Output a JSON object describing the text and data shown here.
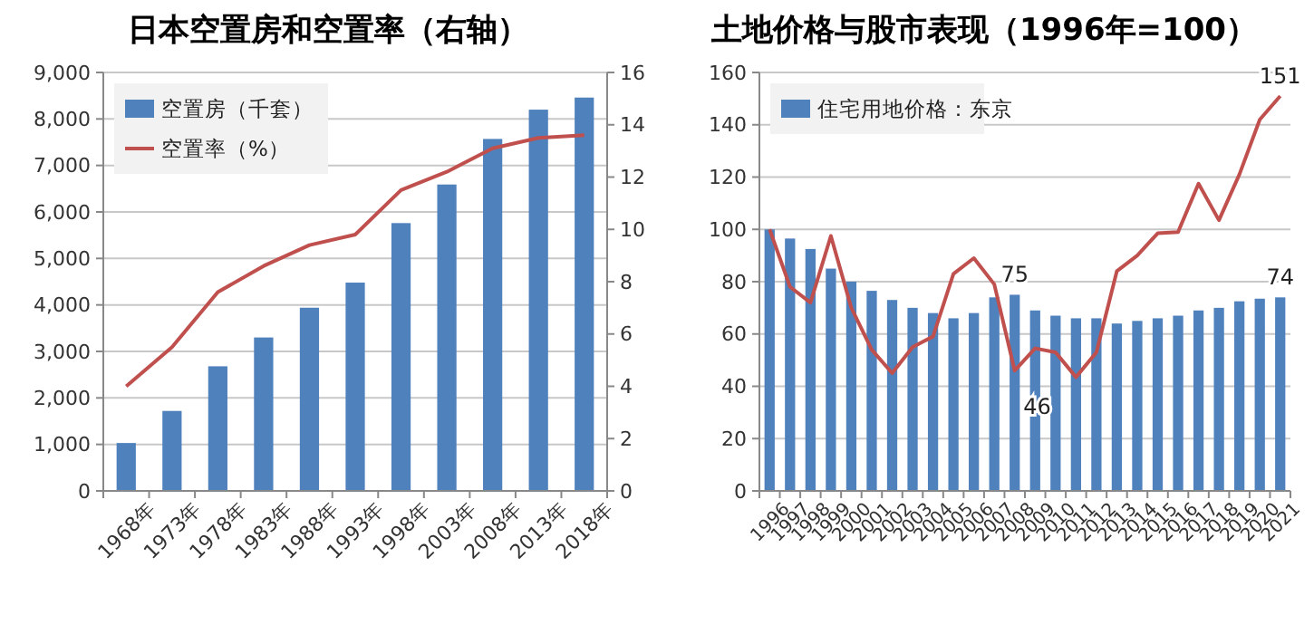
{
  "chart_data": [
    {
      "type": "bar",
      "title": "日本空置房和空置率（右轴）",
      "categories": [
        "1968年",
        "1973年",
        "1978年",
        "1983年",
        "1988年",
        "1993年",
        "1998年",
        "2003年",
        "2008年",
        "2013年",
        "2018年"
      ],
      "series": [
        {
          "name": "空置房（千套）",
          "type": "bar",
          "color": "#4f81bd",
          "values": [
            1030,
            1720,
            2680,
            3300,
            3940,
            4480,
            5760,
            6590,
            7570,
            8200,
            8460
          ]
        },
        {
          "name": "空置率（%）",
          "type": "line",
          "axis": "y2",
          "color": "#c0504d",
          "values": [
            4.0,
            5.5,
            7.6,
            8.6,
            9.4,
            9.8,
            11.5,
            12.2,
            13.1,
            13.5,
            13.6
          ]
        }
      ],
      "ylim": [
        0,
        9000
      ],
      "yticks": [
        {
          "value": 0,
          "label": "0"
        },
        {
          "value": 1000,
          "label": "1,000"
        },
        {
          "value": 2000,
          "label": "2,000"
        },
        {
          "value": 3000,
          "label": "3,000"
        },
        {
          "value": 4000,
          "label": "4,000"
        },
        {
          "value": 5000,
          "label": "5,000"
        },
        {
          "value": 6000,
          "label": "6,000"
        },
        {
          "value": 7000,
          "label": "7,000"
        },
        {
          "value": 8000,
          "label": "8,000"
        },
        {
          "value": 9000,
          "label": "9,000"
        }
      ],
      "y2lim": [
        0,
        16
      ],
      "y2ticks": [
        0,
        2,
        4,
        6,
        8,
        10,
        12,
        14,
        16
      ],
      "grid": "y",
      "legend": "top left",
      "marker": "none"
    },
    {
      "type": "bar",
      "title": "土地价格与股市表现（1996年=100）",
      "categories": [
        "1996",
        "1997",
        "1998",
        "1999",
        "2000",
        "2001",
        "2002",
        "2003",
        "2004",
        "2005",
        "2006",
        "2007",
        "2008",
        "2009",
        "2010",
        "2011",
        "2012",
        "2013",
        "2014",
        "2015",
        "2016",
        "2017",
        "2018",
        "2019",
        "2020",
        "2021"
      ],
      "series": [
        {
          "name": "住宅用地价格：东京",
          "type": "bar",
          "color": "#4f81bd",
          "values": [
            100,
            96.5,
            92.5,
            85,
            80,
            76.5,
            73,
            70,
            68,
            66,
            68,
            74,
            75,
            69,
            67,
            66,
            66,
            64,
            65,
            66,
            67,
            69,
            70,
            72.5,
            73.5,
            74
          ]
        },
        {
          "type": "line",
          "color": "#c0504d",
          "values": [
            100,
            78,
            72,
            97.5,
            70,
            54,
            45,
            55,
            59,
            83,
            89,
            79,
            46,
            54.5,
            53,
            43.5,
            53,
            84,
            90,
            98.5,
            99,
            117.5,
            103.5,
            121,
            142,
            151
          ]
        }
      ],
      "ylim": [
        0,
        160
      ],
      "yticks": [
        0,
        20,
        40,
        60,
        80,
        100,
        120,
        140,
        160
      ],
      "grid": "y",
      "legend": "top left",
      "marker": "none",
      "annotations": [
        {
          "text": "75",
          "x": "2008",
          "y": 75
        },
        {
          "text": "46",
          "x": "2008",
          "y": 46
        },
        {
          "text": "151",
          "x": "2021",
          "y": 151
        },
        {
          "text": "74",
          "x": "2021",
          "y": 74
        }
      ]
    }
  ]
}
